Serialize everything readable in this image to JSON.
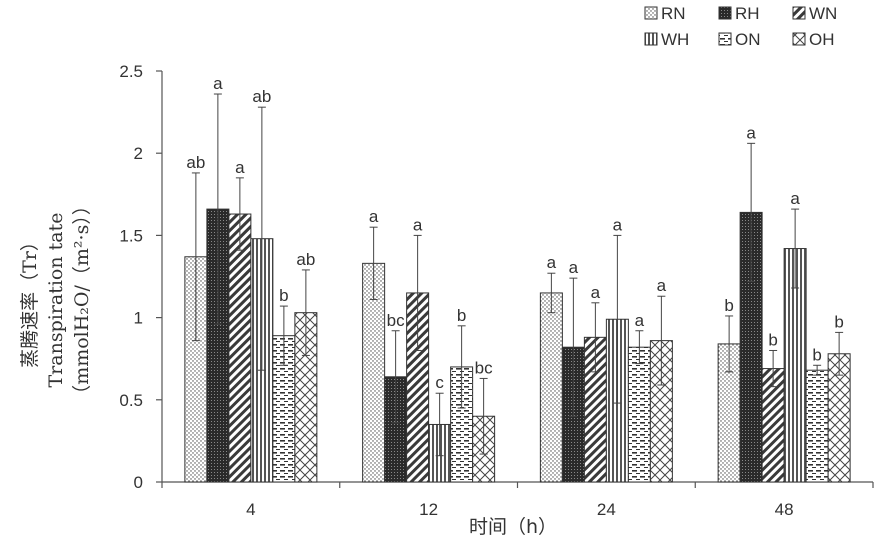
{
  "chart_data": {
    "type": "bar",
    "title": "",
    "ylabel_lines": [
      "蒸腾速率（Tr）",
      "Transpiration tate",
      "（mmolH₂O/（m²·s））"
    ],
    "xlabel": "时间（h）",
    "categories": [
      "4",
      "12",
      "24",
      "48"
    ],
    "ylim": [
      0,
      2.5
    ],
    "yticks": [
      "0",
      "0.5",
      "1",
      "1.5",
      "2",
      "2.5"
    ],
    "legend_position": "top-right",
    "series": [
      {
        "name": "RN",
        "pattern": "dots",
        "values": [
          1.37,
          1.33,
          1.15,
          0.84
        ],
        "errors": [
          0.51,
          0.22,
          0.12,
          0.17
        ],
        "labels": [
          "ab",
          "a",
          "a",
          "b"
        ]
      },
      {
        "name": "RH",
        "pattern": "dense",
        "values": [
          1.66,
          0.64,
          0.82,
          1.64
        ],
        "errors": [
          0.7,
          0.28,
          0.42,
          0.42
        ],
        "labels": [
          "a",
          "bc",
          "a",
          "a"
        ]
      },
      {
        "name": "WN",
        "pattern": "diag-back",
        "values": [
          1.63,
          1.15,
          0.88,
          0.69
        ],
        "errors": [
          0.22,
          0.35,
          0.21,
          0.11
        ],
        "labels": [
          "a",
          "a",
          "a",
          "b"
        ]
      },
      {
        "name": "WH",
        "pattern": "vertical",
        "values": [
          1.48,
          0.35,
          0.99,
          1.42
        ],
        "errors": [
          0.8,
          0.19,
          0.51,
          0.24
        ],
        "labels": [
          "ab",
          "c",
          "a",
          "a"
        ]
      },
      {
        "name": "ON",
        "pattern": "dashes",
        "values": [
          0.89,
          0.7,
          0.82,
          0.68
        ],
        "errors": [
          0.18,
          0.25,
          0.1,
          0.03
        ],
        "labels": [
          "b",
          "b",
          "a",
          "b"
        ]
      },
      {
        "name": "OH",
        "pattern": "crosshatch",
        "values": [
          1.03,
          0.4,
          0.86,
          0.78
        ],
        "errors": [
          0.26,
          0.23,
          0.27,
          0.13
        ],
        "labels": [
          "ab",
          "bc",
          "a",
          "b"
        ]
      }
    ]
  }
}
